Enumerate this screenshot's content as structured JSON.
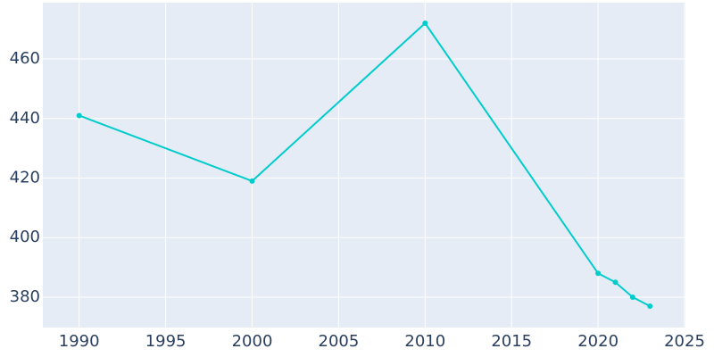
{
  "chart_data": {
    "type": "line",
    "x": [
      1990,
      2000,
      2010,
      2020,
      2021,
      2022,
      2023
    ],
    "series": [
      {
        "color": "#00cccc",
        "values": [
          441,
          419,
          472,
          388,
          385,
          380,
          377
        ]
      }
    ],
    "xlim": [
      1987.9,
      2025.05
    ],
    "xticks": [
      1990,
      1995,
      2000,
      2005,
      2010,
      2015,
      2020,
      2025
    ],
    "ylim": [
      369.8,
      478.9
    ],
    "yticks": [
      380,
      400,
      420,
      440,
      460
    ],
    "grid": true,
    "background": "#e5ecf6"
  }
}
